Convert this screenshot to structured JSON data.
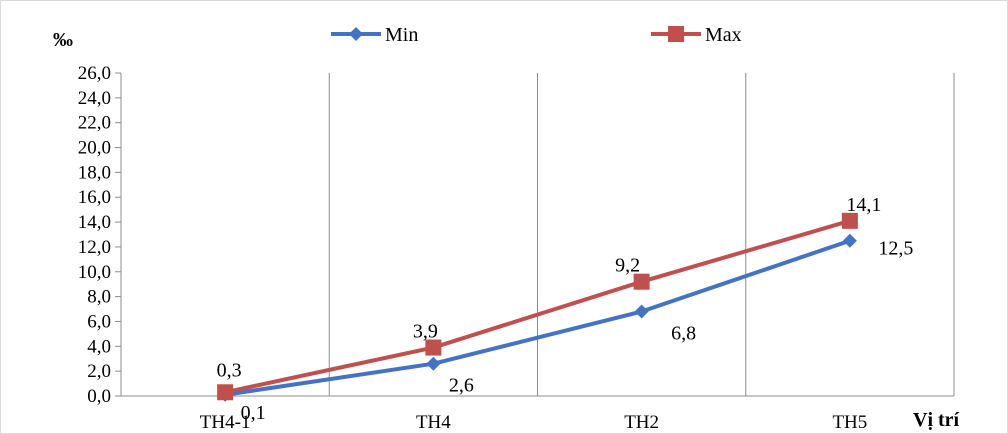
{
  "chart_data": {
    "type": "line",
    "title": "",
    "ylabel": "‰",
    "xlabel": "Vị trí",
    "categories": [
      "TH4-1",
      "TH4",
      "TH2",
      "TH5"
    ],
    "ylim": [
      0,
      26
    ],
    "ytick_step": 2,
    "ytick_labels": [
      "0,0",
      "2,0",
      "4,0",
      "6,0",
      "8,0",
      "10,0",
      "12,0",
      "14,0",
      "16,0",
      "18,0",
      "20,0",
      "22,0",
      "24,0",
      "26,0"
    ],
    "legend_position": "top",
    "grid": "vertical",
    "series": [
      {
        "name": "Min",
        "color": "#4472c4",
        "marker": "diamond",
        "values": [
          0.1,
          2.6,
          6.8,
          12.5
        ],
        "labels": [
          "0,1",
          "2,6",
          "6,8",
          "12,5"
        ]
      },
      {
        "name": "Max",
        "color": "#c0504d",
        "marker": "square",
        "values": [
          0.3,
          3.9,
          9.2,
          14.1
        ],
        "labels": [
          "0,3",
          "3,9",
          "9,2",
          "14,1"
        ]
      }
    ]
  }
}
